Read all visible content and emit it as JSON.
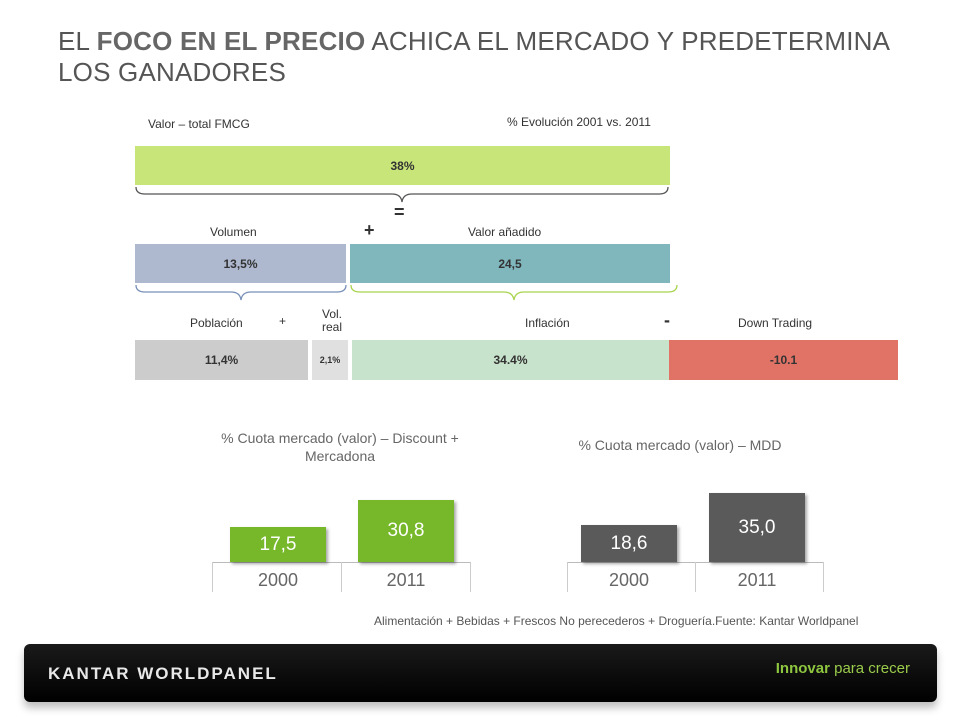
{
  "title": {
    "part1": "EL ",
    "bold": "FOCO EN EL PRECIO",
    "part2": " ACHICA EL MERCADO Y PREDETERMINA LOS GANADORES"
  },
  "diagram": {
    "valor_label": "Valor – total FMCG",
    "evolucion_label": "% Evolución 2001 vs. 2011",
    "total_value": "38%",
    "equals": "=",
    "volumen_label": "Volumen",
    "plus1": "+",
    "valor_anadido_label": "Valor añadido",
    "volumen_value": "13,5%",
    "valor_anadido_value": "24,5",
    "poblacion_label": "Población",
    "plus2": "+",
    "vol_real_label": "Vol.\nreal",
    "inflacion_label": "Inflación",
    "minus": "-",
    "down_trading_label": "Down Trading",
    "poblacion_value": "11,4%",
    "vol_real_value": "2,1%",
    "inflacion_value": "34.4%",
    "down_trading_value": "-10.1",
    "colors": {
      "total": "#c8e57a",
      "volumen": "#aeb8cf",
      "valor_anadido": "#7fb7bd",
      "poblacion": "#cccccc",
      "vol_real": "#d9d9d9",
      "inflacion": "#c8e3cb",
      "down_trading": "#e07266"
    }
  },
  "chart_data": [
    {
      "type": "bar",
      "title": "% Cuota mercado (valor) – Discount + Mercadona",
      "categories": [
        "2000",
        "2011"
      ],
      "values": [
        17.5,
        30.8
      ],
      "value_labels": [
        "17,5",
        "30,8"
      ],
      "color": "#76b82a"
    },
    {
      "type": "bar",
      "title": "% Cuota mercado (valor) – MDD",
      "categories": [
        "2000",
        "2011"
      ],
      "values": [
        18.6,
        35.0
      ],
      "value_labels": [
        "18,6",
        "35,0"
      ],
      "color": "#5a5a5a"
    }
  ],
  "source_note": "Alimentación + Bebidas + Frescos No perecederos + Droguería.Fuente: Kantar Worldpanel",
  "footer": {
    "logo": "KANTAR WORLDPANEL",
    "tagline_strong": "Innovar",
    "tagline_rest": " para crecer"
  }
}
